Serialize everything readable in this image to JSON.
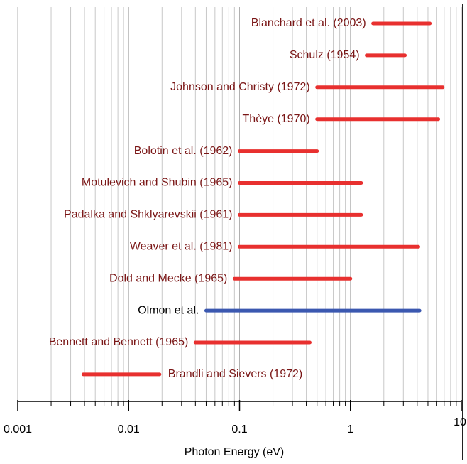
{
  "chart_data": {
    "type": "range",
    "xlabel": "Photon Energy (eV)",
    "xscale": "log",
    "xlim": [
      0.001,
      10
    ],
    "xticks": [
      0.001,
      0.01,
      0.1,
      1,
      10
    ],
    "grid": true,
    "ranges": [
      {
        "name": "Blanchard et al. (2003)",
        "start": 1.6,
        "end": 5.2,
        "color": "#e8302f",
        "label_color": "#7a1616",
        "label_side": "left"
      },
      {
        "name": "Schulz (1954)",
        "start": 1.4,
        "end": 3.1,
        "color": "#e8302f",
        "label_color": "#7a1616",
        "label_side": "left"
      },
      {
        "name": "Johnson and Christy (1972)",
        "start": 0.5,
        "end": 6.8,
        "color": "#e8302f",
        "label_color": "#7a1616",
        "label_side": "left"
      },
      {
        "name": "Thèye (1970)",
        "start": 0.5,
        "end": 6.2,
        "color": "#e8302f",
        "label_color": "#7a1616",
        "label_side": "left"
      },
      {
        "name": "Bolotin et al. (1962)",
        "start": 0.1,
        "end": 0.5,
        "color": "#e8302f",
        "label_color": "#7a1616",
        "label_side": "left"
      },
      {
        "name": "Motulevich and Shubin (1965)",
        "start": 0.1,
        "end": 1.25,
        "color": "#e8302f",
        "label_color": "#7a1616",
        "label_side": "left"
      },
      {
        "name": "Padalka and Shklyarevskii (1961)",
        "start": 0.1,
        "end": 1.25,
        "color": "#e8302f",
        "label_color": "#7a1616",
        "label_side": "left"
      },
      {
        "name": "Weaver et al. (1981)",
        "start": 0.1,
        "end": 4.1,
        "color": "#e8302f",
        "label_color": "#7a1616",
        "label_side": "left"
      },
      {
        "name": "Dold and Mecke (1965)",
        "start": 0.09,
        "end": 1.0,
        "color": "#e8302f",
        "label_color": "#7a1616",
        "label_side": "left"
      },
      {
        "name": "Olmon et al.",
        "start": 0.05,
        "end": 4.2,
        "color": "#3b58b0",
        "label_color": "#000000",
        "label_side": "left"
      },
      {
        "name": "Bennett and Bennett (1965)",
        "start": 0.04,
        "end": 0.43,
        "color": "#e8302f",
        "label_color": "#7a1616",
        "label_side": "left"
      },
      {
        "name": "Brandli and Sievers (1972)",
        "start": 0.0039,
        "end": 0.019,
        "color": "#e8302f",
        "label_color": "#7a1616",
        "label_side": "right"
      }
    ]
  }
}
